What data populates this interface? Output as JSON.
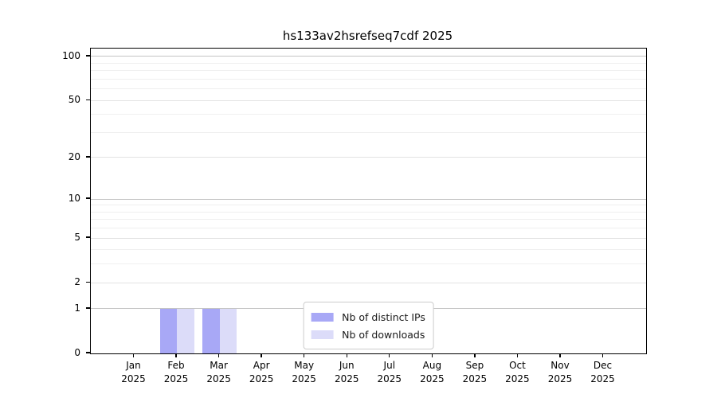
{
  "chart_data": {
    "type": "bar",
    "title": "hs133av2hsrefseq7cdf 2025",
    "categories": [
      "Jan 2025",
      "Feb 2025",
      "Mar 2025",
      "Apr 2025",
      "May 2025",
      "Jun 2025",
      "Jul 2025",
      "Aug 2025",
      "Sep 2025",
      "Oct 2025",
      "Nov 2025",
      "Dec 2025"
    ],
    "series": [
      {
        "name": "Nb of distinct IPs",
        "color": "#a8a8f6",
        "values": [
          0,
          1,
          1,
          0,
          0,
          0,
          0,
          0,
          0,
          0,
          0,
          0
        ]
      },
      {
        "name": "Nb of downloads",
        "color": "#dcdcf9",
        "values": [
          0,
          1,
          1,
          0,
          0,
          0,
          0,
          0,
          0,
          0,
          0,
          0
        ]
      }
    ],
    "xlabel": "",
    "ylabel": "",
    "y_scale": "log1p",
    "ylim": [
      0,
      115
    ],
    "yticks": [
      0,
      1,
      2,
      5,
      10,
      20,
      50,
      100
    ],
    "y_decade_ticks": [
      1,
      10,
      100
    ],
    "y_minor_gridlines": [
      3,
      4,
      6,
      7,
      8,
      9,
      30,
      40,
      60,
      70,
      80,
      90
    ],
    "grid": "horizontal",
    "legend_position": "lower center"
  },
  "colors": {
    "axis": "#000000",
    "grid_decade": "#c4c4c4",
    "grid_labeled": "#e3e3e3",
    "grid_minor": "#efefef",
    "legend_border": "#cccccc",
    "background": "#ffffff"
  }
}
